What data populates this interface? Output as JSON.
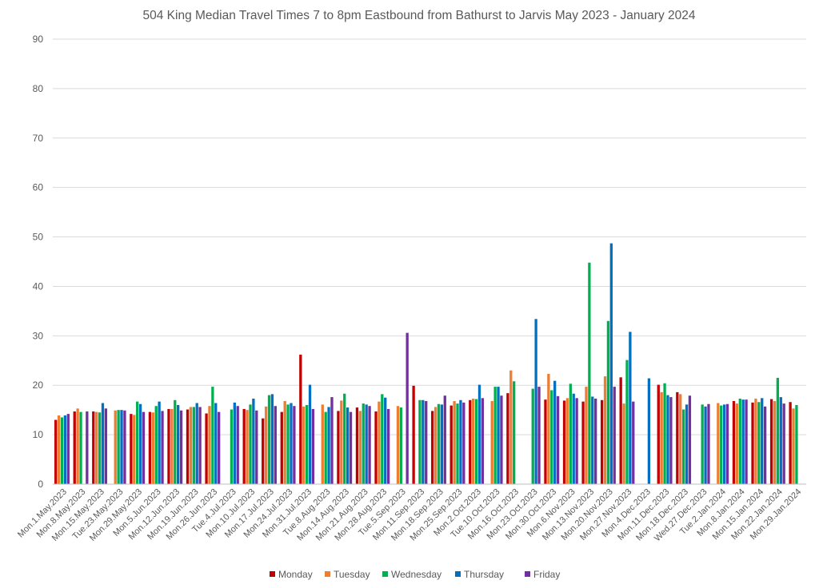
{
  "chart_data": {
    "type": "bar",
    "title": "504 King Median Travel Times 7 to 8pm Eastbound from Bathurst to Jarvis May 2023 - January 2024",
    "xlabel": "",
    "ylabel": "",
    "ylim": [
      0,
      90
    ],
    "yticks": [
      "0",
      "10",
      "20",
      "30",
      "40",
      "50",
      "60",
      "70",
      "80",
      "90"
    ],
    "grid": true,
    "legend_position": "bottom",
    "categories": [
      "Mon.1.May.2023",
      "Mon.8.May.2023",
      "Mon.15.May.2023",
      "Tue.23.May.2023",
      "Mon.29.May.2023",
      "Mon.5.Jun.2023",
      "Mon.12.Jun.2023",
      "Mon.19.Jun.2023",
      "Mon.26.Jun.2023",
      "Tue.4.Jul.2023",
      "Mon.10.Jul.2023",
      "Mon.17.Jul.2023",
      "Mon.24.Jul.2023",
      "Mon.31.Jul.2023",
      "Tue.8.Aug.2023",
      "Mon.14.Aug.2023",
      "Mon.21.Aug.2023",
      "Mon.28.Aug.2023",
      "Tue.5.Sep.2023",
      "Mon.11.Sep.2023",
      "Mon.18.Sep.2023",
      "Mon.25.Sep.2023",
      "Mon.2.Oct.2023",
      "Tue.10.Oct.2023",
      "Mon.16.Oct.2023",
      "Mon.23.Oct.2023",
      "Mon.30.Oct.2023",
      "Mon.6.Nov.2023",
      "Mon.13.Nov.2023",
      "Mon.20.Nov.2023",
      "Mon.27.Nov.2023",
      "Mon.4.Dec.2023",
      "Mon.11.Dec.2023",
      "Mon.18.Dec.2023",
      "Wed.27.Dec.2023",
      "Tue.2.Jan.2024",
      "Mon.8.Jan.2024",
      "Mon.15.Jan.2024",
      "Mon.22.Jan.2024",
      "Mon.29.Jan.2024"
    ],
    "series": [
      {
        "name": "Monday",
        "color": "#c00000",
        "values": [
          13.0,
          14.7,
          14.7,
          null,
          14.2,
          14.6,
          15.2,
          15.1,
          14.3,
          null,
          15.2,
          13.3,
          14.6,
          26.2,
          null,
          14.8,
          15.5,
          14.7,
          null,
          19.9,
          14.8,
          15.9,
          17.0,
          null,
          18.4,
          null,
          17.1,
          16.9,
          16.7,
          17.0,
          21.6,
          null,
          20.1,
          18.6,
          null,
          null,
          16.8,
          16.5,
          17.2,
          16.6
        ]
      },
      {
        "name": "Tuesday",
        "color": "#ed7d31",
        "values": [
          13.9,
          15.3,
          14.6,
          14.9,
          14.0,
          14.5,
          15.2,
          15.6,
          15.8,
          null,
          15.0,
          15.7,
          16.8,
          15.7,
          16.1,
          16.9,
          14.8,
          16.7,
          15.8,
          null,
          15.6,
          16.8,
          17.3,
          16.8,
          23.0,
          null,
          22.3,
          17.4,
          19.7,
          21.8,
          16.3,
          null,
          18.6,
          18.2,
          null,
          16.4,
          16.3,
          17.3,
          16.8,
          15.3
        ]
      },
      {
        "name": "Wednesday",
        "color": "#00b050",
        "values": [
          13.5,
          14.6,
          14.5,
          15.0,
          16.7,
          15.8,
          17.0,
          15.6,
          19.7,
          15.1,
          16.1,
          18.0,
          16.1,
          16.0,
          14.6,
          18.3,
          16.3,
          18.2,
          15.5,
          17.0,
          16.2,
          16.3,
          17.2,
          19.7,
          20.8,
          19.3,
          19.0,
          20.3,
          44.8,
          33.0,
          25.1,
          null,
          20.4,
          15.1,
          16.1,
          15.9,
          17.3,
          16.6,
          21.5,
          16.0
        ]
      },
      {
        "name": "Thursday",
        "color": "#0070c0",
        "values": [
          13.9,
          null,
          16.4,
          15.0,
          16.2,
          16.7,
          16.0,
          16.4,
          16.4,
          16.5,
          17.3,
          18.2,
          16.4,
          20.1,
          15.6,
          15.5,
          16.1,
          17.5,
          null,
          17.0,
          16.1,
          17.0,
          20.1,
          19.7,
          null,
          33.4,
          20.9,
          18.3,
          17.7,
          48.7,
          30.8,
          21.4,
          18.0,
          16.1,
          15.7,
          16.1,
          17.1,
          17.4,
          17.6,
          null
        ]
      },
      {
        "name": "Friday",
        "color": "#7030a0",
        "values": [
          14.2,
          14.7,
          15.3,
          14.9,
          14.6,
          14.8,
          14.9,
          15.6,
          14.6,
          15.8,
          14.9,
          15.8,
          15.8,
          15.2,
          17.6,
          14.6,
          15.8,
          15.2,
          30.6,
          16.8,
          17.9,
          16.5,
          17.4,
          17.9,
          null,
          19.7,
          17.8,
          17.4,
          17.3,
          19.7,
          16.7,
          null,
          17.6,
          17.9,
          16.2,
          16.2,
          17.1,
          15.7,
          16.3,
          null
        ]
      }
    ]
  }
}
